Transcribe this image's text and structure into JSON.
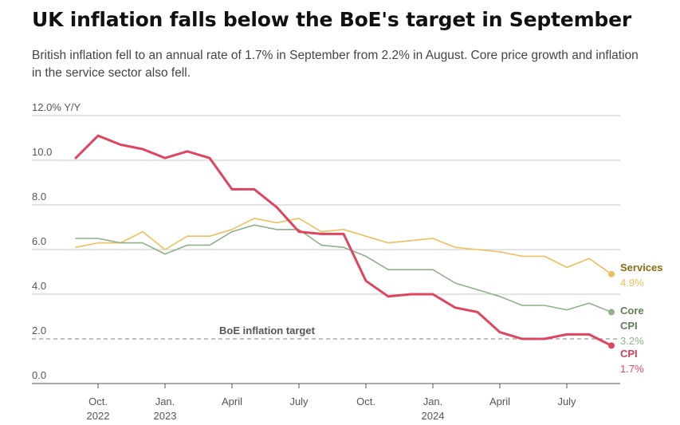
{
  "header": {
    "title": "UK inflation falls below the BoE's target in September",
    "subtitle": "British inflation fell to an annual rate of 1.7% in September from 2.2% in August. Core price growth and inflation in the service sector also fell."
  },
  "chart_data": {
    "type": "line",
    "title": "UK inflation falls below the BoE's target in September",
    "ylabel": "Y/Y",
    "ylim": [
      0,
      12
    ],
    "y_ticks": [
      {
        "value": 0,
        "label": "0.0"
      },
      {
        "value": 2,
        "label": "2.0"
      },
      {
        "value": 4,
        "label": "4.0"
      },
      {
        "value": 6,
        "label": "6.0"
      },
      {
        "value": 8,
        "label": "8.0"
      },
      {
        "value": 10,
        "label": "10.0"
      },
      {
        "value": 12,
        "label": "12.0% Y/Y"
      }
    ],
    "x_ticks": [
      {
        "index": 1,
        "label": "Oct.",
        "sublabel": "2022"
      },
      {
        "index": 4,
        "label": "Jan.",
        "sublabel": "2023"
      },
      {
        "index": 7,
        "label": "April",
        "sublabel": ""
      },
      {
        "index": 10,
        "label": "July",
        "sublabel": ""
      },
      {
        "index": 13,
        "label": "Oct.",
        "sublabel": ""
      },
      {
        "index": 16,
        "label": "Jan.",
        "sublabel": "2024"
      },
      {
        "index": 19,
        "label": "April",
        "sublabel": ""
      },
      {
        "index": 22,
        "label": "July",
        "sublabel": ""
      }
    ],
    "x": [
      "2022-09",
      "2022-10",
      "2022-11",
      "2022-12",
      "2023-01",
      "2023-02",
      "2023-03",
      "2023-04",
      "2023-05",
      "2023-06",
      "2023-07",
      "2023-08",
      "2023-09",
      "2023-10",
      "2023-11",
      "2023-12",
      "2024-01",
      "2024-02",
      "2024-03",
      "2024-04",
      "2024-05",
      "2024-06",
      "2024-07",
      "2024-08",
      "2024-09"
    ],
    "reference_line": {
      "value": 2.0,
      "label": "BoE inflation target"
    },
    "grid": true,
    "series": [
      {
        "name": "Services",
        "value_label": "4.9%",
        "color": "#ecc05c",
        "label_color": "#8a6d10",
        "width": 1.6,
        "values": [
          6.1,
          6.3,
          6.3,
          6.8,
          6.0,
          6.6,
          6.6,
          6.9,
          7.4,
          7.2,
          7.4,
          6.8,
          6.9,
          6.6,
          6.3,
          6.4,
          6.5,
          6.1,
          6.0,
          5.9,
          5.7,
          5.7,
          5.2,
          5.6,
          4.9
        ]
      },
      {
        "name": "Core",
        "value_label": "3.2%",
        "color": "#8fb08a",
        "label_color": "#5f7f57",
        "width": 1.6,
        "values": [
          6.5,
          6.5,
          6.3,
          6.3,
          5.8,
          6.2,
          6.2,
          6.8,
          7.1,
          6.9,
          6.9,
          6.2,
          6.1,
          5.7,
          5.1,
          5.1,
          5.1,
          4.5,
          4.2,
          3.9,
          3.5,
          3.5,
          3.3,
          3.6,
          3.2
        ]
      },
      {
        "name": "CPI",
        "value_label": "1.7%",
        "color": "#e0455f",
        "label_color": "#d63b55",
        "width": 3,
        "values": [
          10.1,
          11.1,
          10.7,
          10.5,
          10.1,
          10.4,
          10.1,
          8.7,
          8.7,
          7.9,
          6.8,
          6.7,
          6.7,
          4.6,
          3.9,
          4.0,
          4.0,
          3.4,
          3.2,
          2.3,
          2.0,
          2.0,
          2.2,
          2.2,
          1.7
        ]
      }
    ],
    "end_labels": [
      {
        "series": "Services",
        "lines": [
          "Services"
        ],
        "value": "4.9%"
      },
      {
        "series": "Core",
        "lines": [
          "Core",
          "CPI"
        ],
        "value": "3.2%"
      },
      {
        "series": "CPI",
        "lines": [
          "CPI"
        ],
        "value": "1.7%"
      }
    ]
  }
}
